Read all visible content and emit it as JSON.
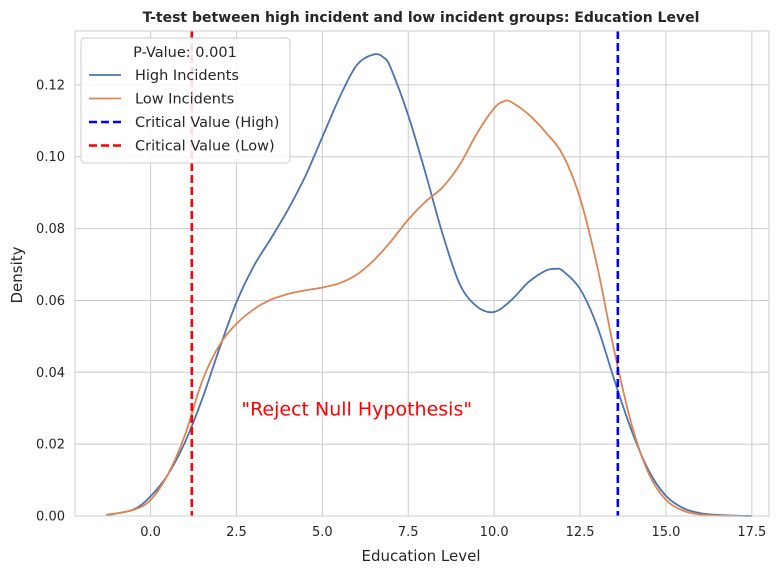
{
  "chart_data": {
    "type": "line",
    "title": "T-test between high incident and low incident groups: Education Level",
    "xlabel": "Education Level",
    "ylabel": "Density",
    "xlim": [
      -2.2,
      18.0
    ],
    "ylim": [
      0.0,
      0.135
    ],
    "xticks": [
      0.0,
      2.5,
      5.0,
      7.5,
      10.0,
      12.5,
      15.0,
      17.5
    ],
    "xtick_labels": [
      "0.0",
      "2.5",
      "5.0",
      "7.5",
      "10.0",
      "12.5",
      "15.0",
      "17.5"
    ],
    "yticks": [
      0.0,
      0.02,
      0.04,
      0.06,
      0.08,
      0.1,
      0.12
    ],
    "ytick_labels": [
      "0.00",
      "0.02",
      "0.04",
      "0.06",
      "0.08",
      "0.10",
      "0.12"
    ],
    "grid": true,
    "legend_position": "top-left",
    "legend_title": "P-Value: 0.001",
    "series": [
      {
        "name": "High Incidents",
        "color": "#4c72b0",
        "style": "solid",
        "x": [
          -1.3,
          -0.5,
          0.0,
          0.5,
          1.0,
          1.5,
          2.0,
          2.5,
          3.0,
          3.5,
          4.0,
          4.5,
          5.0,
          5.5,
          6.0,
          6.5,
          6.8,
          7.0,
          7.5,
          8.0,
          8.5,
          9.0,
          9.5,
          10.0,
          10.5,
          11.0,
          11.5,
          11.8,
          12.0,
          12.5,
          13.0,
          13.5,
          14.0,
          14.5,
          15.0,
          15.5,
          16.0,
          16.5,
          17.0,
          17.5
        ],
        "y": [
          0.0002,
          0.0018,
          0.0055,
          0.0115,
          0.0205,
          0.0325,
          0.0465,
          0.0595,
          0.0695,
          0.0772,
          0.0853,
          0.0945,
          0.1055,
          0.1165,
          0.1255,
          0.1285,
          0.1275,
          0.1245,
          0.1115,
          0.0955,
          0.0785,
          0.0645,
          0.0583,
          0.0568,
          0.0601,
          0.0651,
          0.0683,
          0.0688,
          0.0682,
          0.0632,
          0.0528,
          0.0378,
          0.0238,
          0.0126,
          0.0056,
          0.0022,
          0.0008,
          0.0003,
          0.0001,
          0.0
        ]
      },
      {
        "name": "Low Incidents",
        "color": "#dd8452",
        "style": "solid",
        "x": [
          -1.3,
          -0.5,
          0.0,
          0.5,
          1.0,
          1.5,
          2.0,
          2.5,
          3.0,
          3.5,
          4.0,
          4.5,
          5.0,
          5.5,
          6.0,
          6.5,
          7.0,
          7.5,
          8.0,
          8.5,
          9.0,
          9.5,
          10.0,
          10.3,
          10.5,
          11.0,
          11.5,
          12.0,
          12.5,
          13.0,
          13.5,
          14.0,
          14.5,
          15.0,
          15.5,
          16.0,
          16.5,
          17.0
        ],
        "y": [
          0.0003,
          0.0017,
          0.0045,
          0.0115,
          0.0225,
          0.0375,
          0.0475,
          0.0535,
          0.0575,
          0.0602,
          0.0618,
          0.0628,
          0.0636,
          0.0648,
          0.0672,
          0.0712,
          0.0765,
          0.0825,
          0.0875,
          0.0915,
          0.0978,
          0.1065,
          0.1135,
          0.1155,
          0.1152,
          0.1118,
          0.1068,
          0.1005,
          0.0885,
          0.0695,
          0.0458,
          0.0255,
          0.0118,
          0.0045,
          0.0015,
          0.0004,
          0.0001,
          0.0
        ]
      }
    ],
    "vlines": [
      {
        "name": "Critical Value (High)",
        "x": 13.6,
        "color": "#0000ff",
        "style": "dashed"
      },
      {
        "name": "Critical Value (Low)",
        "x": 1.2,
        "color": "#ff0000",
        "style": "dashed"
      }
    ],
    "annotation": {
      "text": "\"Reject Null Hypothesis\"",
      "x": 6.0,
      "y": 0.028,
      "color": "#ff0000"
    }
  }
}
